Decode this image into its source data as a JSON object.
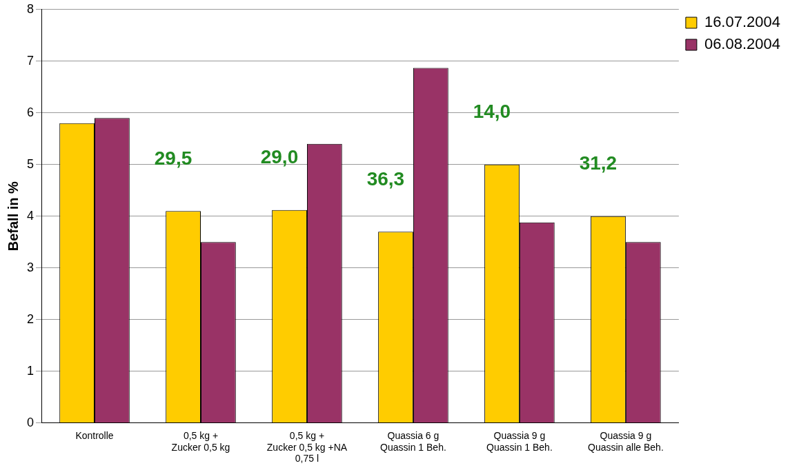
{
  "chart_data": {
    "type": "bar",
    "ylabel": "Befall in %",
    "categories": [
      "Kontrolle",
      "0,5 kg +\nZucker 0,5 kg",
      "0,5 kg +\nZucker 0,5 kg +NA\n0,75 l",
      "Quassia 6 g\nQuassin 1 Beh.",
      "Quassia 9 g\nQuassin 1 Beh.",
      "Quassia 9 g\nQuassin alle Beh."
    ],
    "series": [
      {
        "name": "16.07.2004",
        "color": "#ffcc00",
        "values": [
          5.8,
          4.1,
          4.12,
          3.7,
          5.0,
          4.0
        ]
      },
      {
        "name": "06.08.2004",
        "color": "#993366",
        "values": [
          5.9,
          3.5,
          5.4,
          6.87,
          3.88,
          3.5
        ]
      }
    ],
    "ylim": [
      0,
      8
    ],
    "yticks": [
      0,
      1,
      2,
      3,
      4,
      5,
      6,
      7,
      8
    ],
    "grid": "y",
    "legend": "top right",
    "annotations": [
      "29,5",
      "29,0",
      "36,3",
      "14,0",
      "31,2"
    ]
  }
}
